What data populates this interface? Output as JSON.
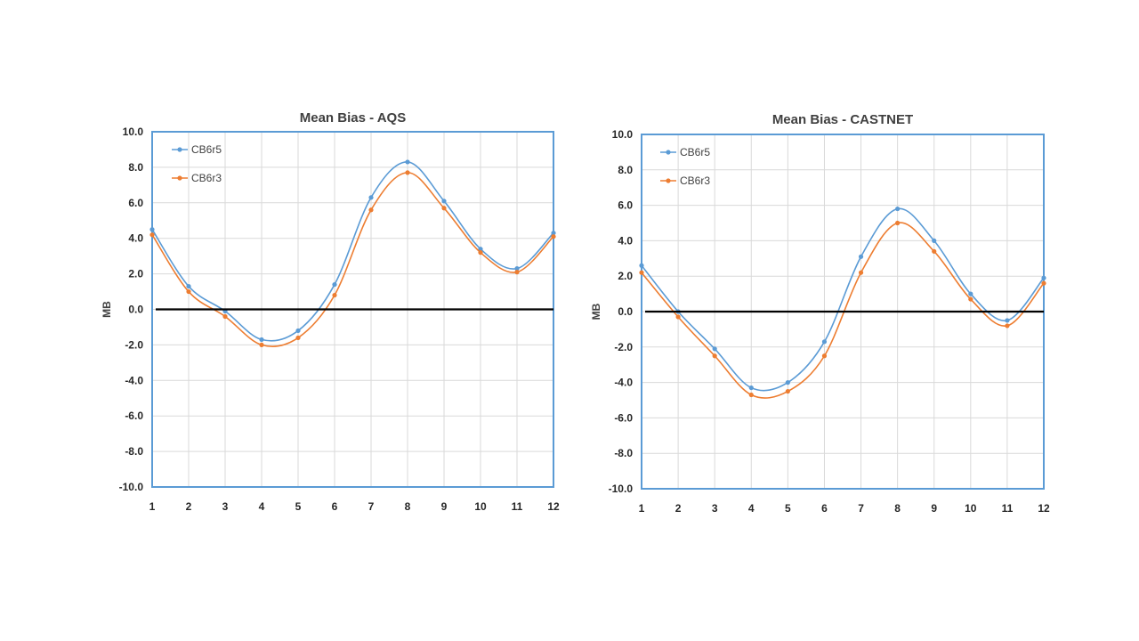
{
  "colors": {
    "series_1": "#5b9bd5",
    "series_2": "#ed7d31",
    "plot_border": "#5b9bd5",
    "gridline": "#d9d9d9",
    "zero_line": "#000000"
  },
  "chart_data": [
    {
      "type": "line",
      "title": "Mean Bias - AQS",
      "xlabel": "",
      "ylabel": "MB",
      "x": [
        1,
        2,
        3,
        4,
        5,
        6,
        7,
        8,
        9,
        10,
        11,
        12
      ],
      "x_tick_labels": [
        "1",
        "2",
        "3",
        "4",
        "5",
        "6",
        "7",
        "8",
        "9",
        "10",
        "11",
        "12"
      ],
      "y_tick_labels": [
        "10.0",
        "8.0",
        "6.0",
        "4.0",
        "2.0",
        "0.0",
        "-2.0",
        "-4.0",
        "-6.0",
        "-8.0",
        "-10.0"
      ],
      "ylim": [
        -10,
        10
      ],
      "grid": true,
      "smooth": true,
      "legend_position": "top-left",
      "series": [
        {
          "name": "CB6r5",
          "values": [
            4.5,
            1.3,
            -0.1,
            -1.7,
            -1.2,
            1.4,
            6.3,
            8.3,
            6.1,
            3.4,
            2.3,
            4.3
          ]
        },
        {
          "name": "CB6r3",
          "values": [
            4.2,
            1.0,
            -0.4,
            -2.0,
            -1.6,
            0.8,
            5.6,
            7.7,
            5.7,
            3.2,
            2.1,
            4.1
          ]
        }
      ],
      "reference_line_y": 0
    },
    {
      "type": "line",
      "title": "Mean Bias - CASTNET",
      "xlabel": "",
      "ylabel": "MB",
      "x": [
        1,
        2,
        3,
        4,
        5,
        6,
        7,
        8,
        9,
        10,
        11,
        12
      ],
      "x_tick_labels": [
        "1",
        "2",
        "3",
        "4",
        "5",
        "6",
        "7",
        "8",
        "9",
        "10",
        "11",
        "12"
      ],
      "y_tick_labels": [
        "10.0",
        "8.0",
        "6.0",
        "4.0",
        "2.0",
        "0.0",
        "-2.0",
        "-4.0",
        "-6.0",
        "-8.0",
        "-10.0"
      ],
      "ylim": [
        -10,
        10
      ],
      "grid": true,
      "smooth": true,
      "legend_position": "top-left",
      "series": [
        {
          "name": "CB6r5",
          "values": [
            2.6,
            0.0,
            -2.1,
            -4.3,
            -4.0,
            -1.7,
            3.1,
            5.8,
            4.0,
            1.0,
            -0.5,
            1.9
          ]
        },
        {
          "name": "CB6r3",
          "values": [
            2.2,
            -0.3,
            -2.5,
            -4.7,
            -4.5,
            -2.5,
            2.2,
            5.0,
            3.4,
            0.7,
            -0.8,
            1.6
          ]
        }
      ],
      "reference_line_y": 0
    }
  ]
}
